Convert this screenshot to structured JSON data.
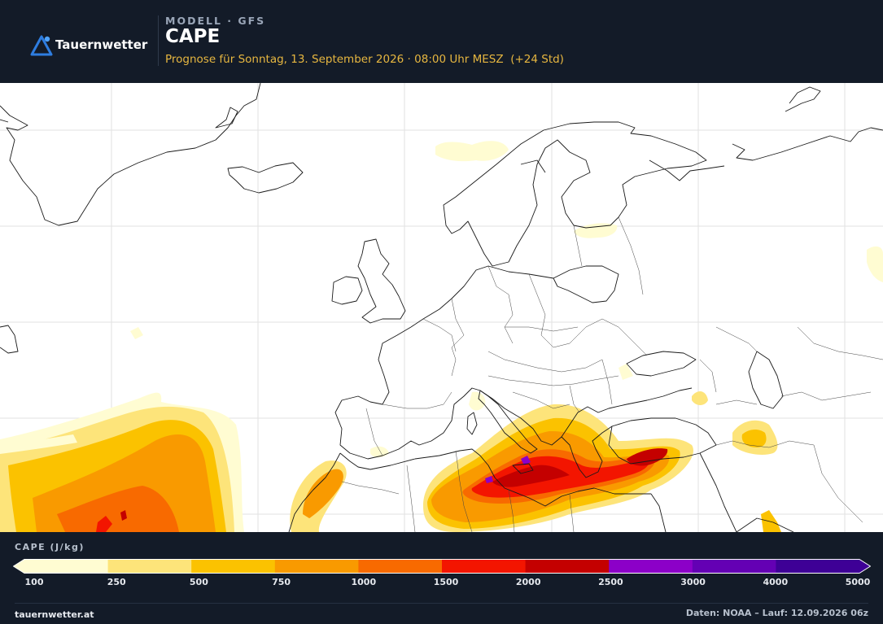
{
  "header": {
    "brand": "Tauernwetter",
    "model_label": "MODELL · GFS",
    "title": "CAPE",
    "subtitle": "Prognose für Sonntag, 13. September 2026 · 08:00 Uhr MESZ  (+24 Std)"
  },
  "map": {
    "region": "Europe, North Atlantic, North Africa",
    "parameter": "CAPE"
  },
  "legend": {
    "title": "CAPE (J/kg)",
    "ticks": [
      "100",
      "250",
      "500",
      "750",
      "1000",
      "1500",
      "2000",
      "2500",
      "3000",
      "4000",
      "5000"
    ],
    "colors": [
      "#fffcd2",
      "#fde47a",
      "#fbc200",
      "#f99a00",
      "#f86a00",
      "#f31500",
      "#c40000",
      "#8c00c8",
      "#6400b4",
      "#3e0096"
    ]
  },
  "footer": {
    "site": "tauernwetter.at",
    "source": "Daten: NOAA – Lauf: 12.09.2026 06z"
  }
}
